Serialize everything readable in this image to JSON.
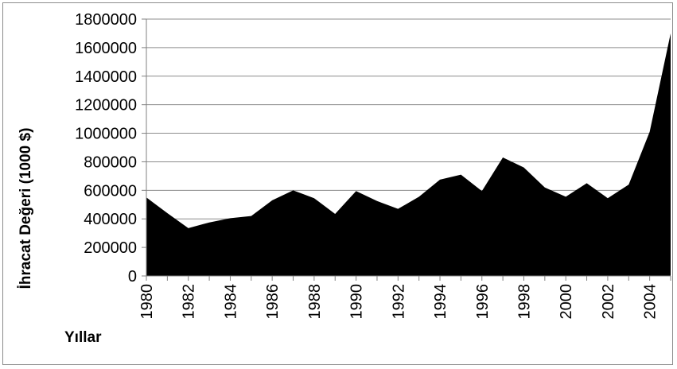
{
  "chart_data": {
    "type": "area",
    "xlabel": "Yıllar",
    "ylabel": "İhracat Değeri (1000 $)",
    "ylim": [
      0,
      1800000
    ],
    "y_ticks": [
      0,
      200000,
      400000,
      600000,
      800000,
      1000000,
      1200000,
      1400000,
      1600000,
      1800000
    ],
    "y_tick_labels": [
      "0",
      "200000",
      "400000",
      "600000",
      "800000",
      "1000000",
      "1200000",
      "1400000",
      "1600000",
      "1800000"
    ],
    "x_tick_labels": [
      "1980",
      "1982",
      "1984",
      "1986",
      "1988",
      "1990",
      "1992",
      "1994",
      "1996",
      "1998",
      "2000",
      "2002",
      "2004"
    ],
    "grid": "horizontal",
    "legend": "none",
    "fill_color": "#000000",
    "series": [
      {
        "x": [
          1980,
          1981,
          1982,
          1983,
          1984,
          1985,
          1986,
          1987,
          1988,
          1989,
          1990,
          1991,
          1992,
          1993,
          1994,
          1995,
          1996,
          1997,
          1998,
          1999,
          2000,
          2001,
          2002,
          2003,
          2004,
          2005
        ],
        "values": [
          550000,
          440000,
          335000,
          375000,
          405000,
          420000,
          530000,
          600000,
          545000,
          435000,
          595000,
          525000,
          470000,
          555000,
          675000,
          710000,
          595000,
          830000,
          760000,
          620000,
          555000,
          650000,
          545000,
          640000,
          1010000,
          1700000
        ]
      }
    ]
  }
}
